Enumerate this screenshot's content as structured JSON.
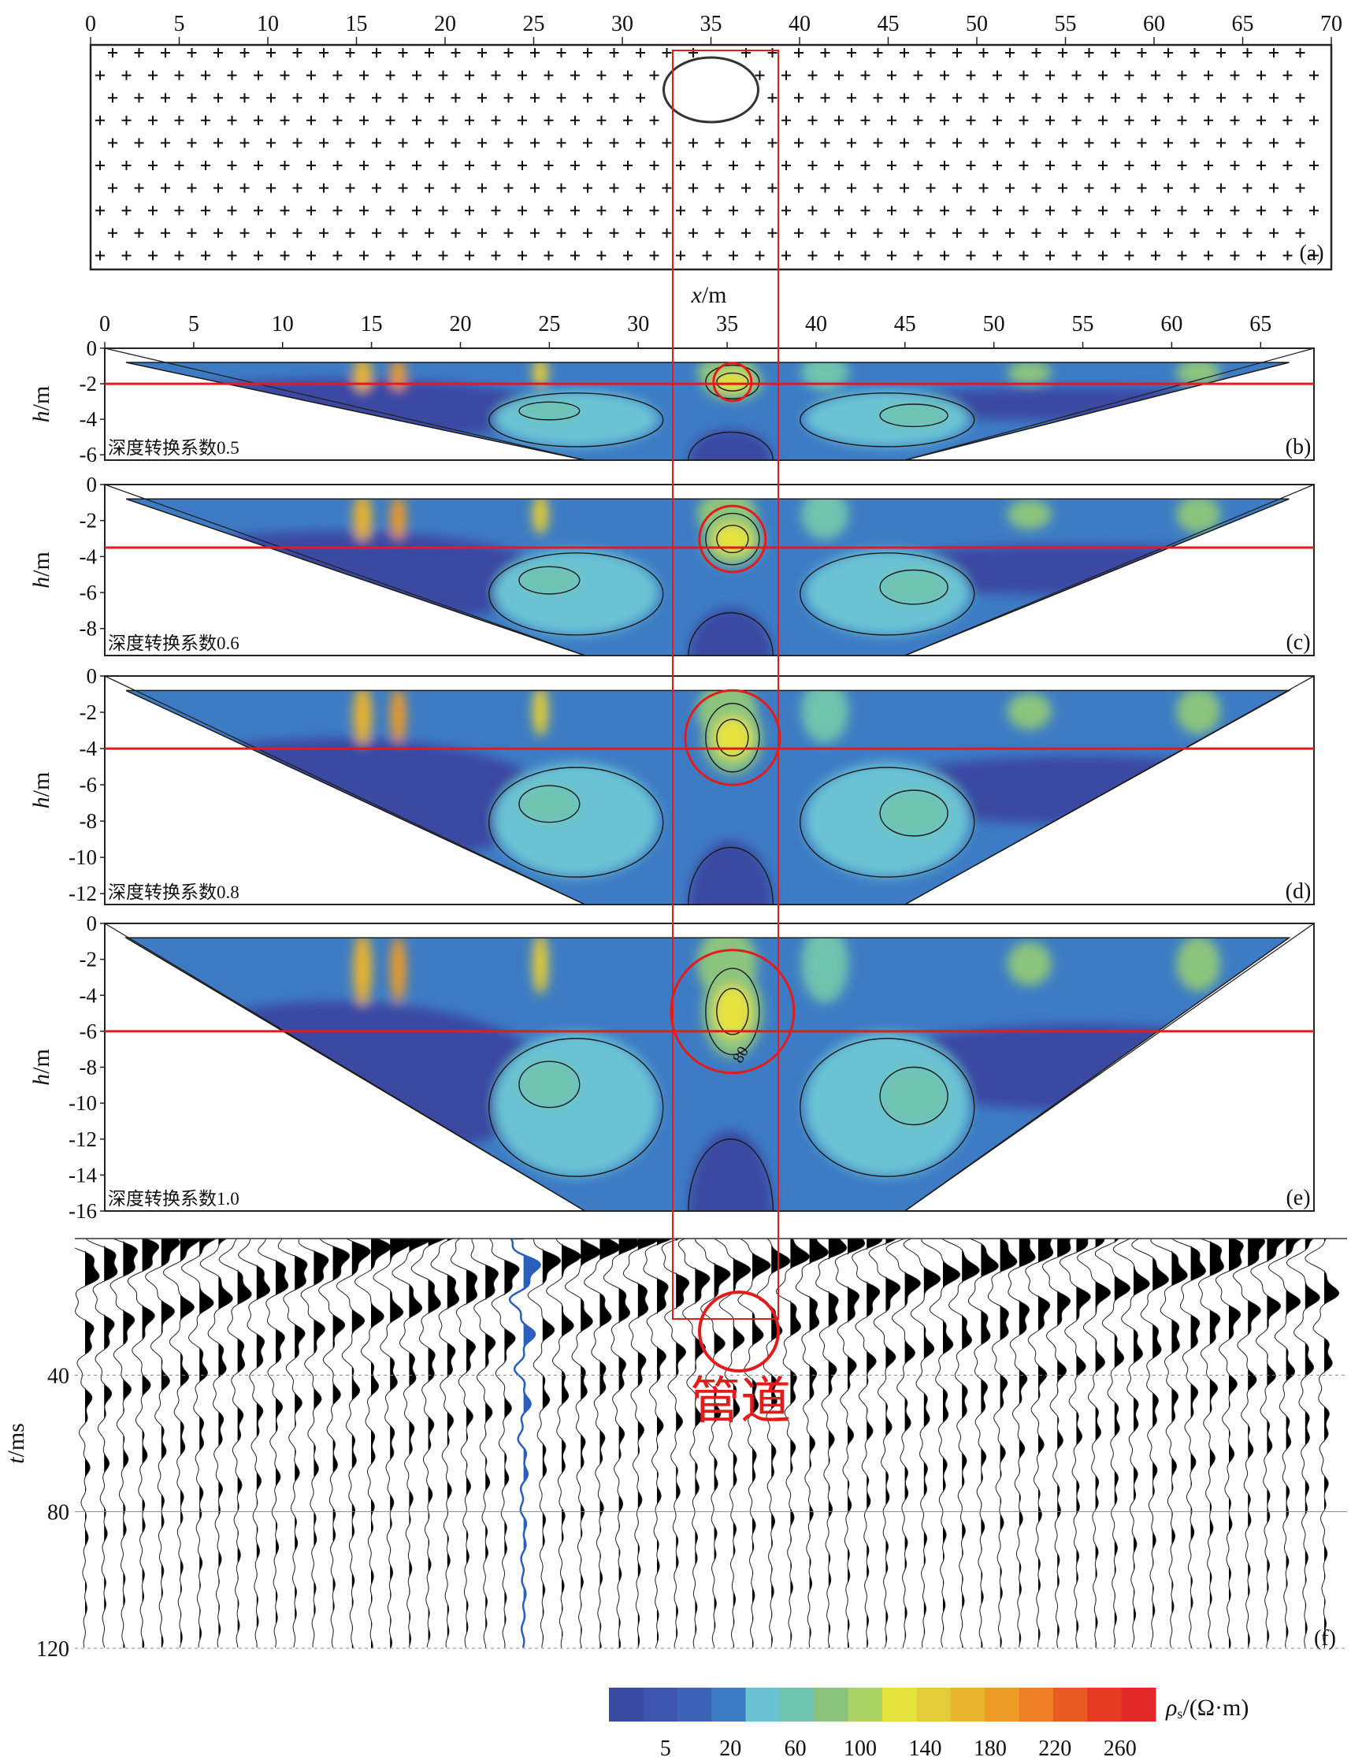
{
  "chart_data": [
    {
      "panel": "(a)",
      "type": "diagram",
      "x_ticks": [
        0,
        5,
        10,
        15,
        20,
        25,
        30,
        35,
        40,
        45,
        50,
        55,
        60,
        65,
        70
      ],
      "xlim": [
        0,
        70
      ],
      "xlabel": "x/m",
      "target": {
        "shape": "ellipse",
        "center_x": 35.0
      }
    },
    {
      "panel": "(b)",
      "type": "contour",
      "x_ticks": [
        0,
        5,
        10,
        15,
        20,
        25,
        30,
        35,
        40,
        45,
        50,
        55,
        60,
        65
      ],
      "xlim": [
        0,
        68
      ],
      "y_ticks": [
        0,
        -2,
        -4,
        -6
      ],
      "ylim": [
        -6.3,
        0
      ],
      "ylabel": "h/m",
      "annotation": "深度转换系数0.5",
      "pipe_marker_depth": -2
    },
    {
      "panel": "(c)",
      "type": "contour",
      "xlim": [
        0,
        68
      ],
      "y_ticks": [
        0,
        -2,
        -4,
        -6,
        -8
      ],
      "ylim": [
        -9.5,
        0
      ],
      "ylabel": "h/m",
      "annotation": "深度转换系数0.6",
      "pipe_marker_depth": -3.5
    },
    {
      "panel": "(d)",
      "type": "contour",
      "xlim": [
        0,
        68
      ],
      "y_ticks": [
        0,
        -2,
        -4,
        -6,
        -8,
        -10,
        -12
      ],
      "ylim": [
        -12.6,
        0
      ],
      "ylabel": "h/m",
      "annotation": "深度转换系数0.8",
      "pipe_marker_depth": -4
    },
    {
      "panel": "(e)",
      "type": "contour",
      "xlim": [
        0,
        68
      ],
      "y_ticks": [
        0,
        -2,
        -4,
        -6,
        -8,
        -10,
        -12,
        -14,
        -16
      ],
      "ylim": [
        -16,
        0
      ],
      "ylabel": "h/m",
      "annotation": "深度转换系数1.0",
      "contour_label": "80",
      "pipe_marker_depth": -6
    },
    {
      "panel": "(f)",
      "type": "seismic",
      "y_ticks": [
        40,
        80,
        120
      ],
      "ylim": [
        0,
        120
      ],
      "ylabel": "t/ms",
      "annotation": "管道"
    },
    {
      "type": "colorbar",
      "label": "ρs/(Ω·m)",
      "tick_labels": [
        "5",
        "20",
        "60",
        "100",
        "140",
        "180",
        "220",
        "260"
      ],
      "colors": [
        "#3b4aa3",
        "#3d55ad",
        "#3d63b6",
        "#3d7cc4",
        "#6ac3d4",
        "#70c3ad",
        "#8cc47e",
        "#abd365",
        "#e6e23e",
        "#e3cd38",
        "#eab42f",
        "#ef9b28",
        "#ef7f27",
        "#ea5a23",
        "#e63a22",
        "#e42a26"
      ]
    }
  ]
}
